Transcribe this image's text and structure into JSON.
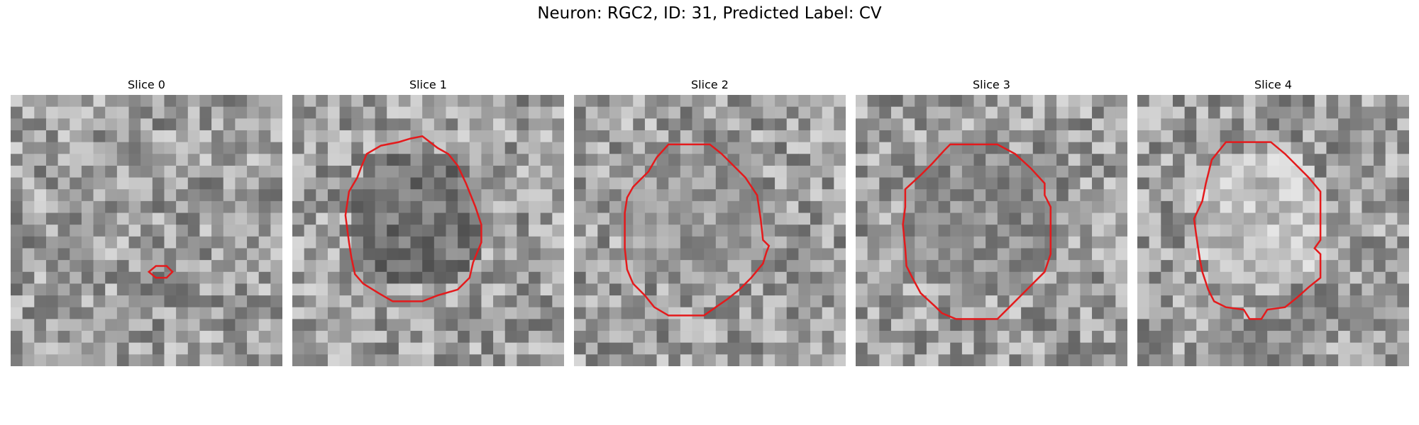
{
  "figure": {
    "title": "Neuron: RGC2, ID: 31, Predicted Label: CV",
    "contour_color": "#e41a1c"
  },
  "slices": [
    {
      "label": "Slice 0",
      "cell": [
        0.0,
        0.0,
        0.0,
        0.0
      ],
      "contour": [
        [
          11.7,
          15.0
        ],
        [
          12.3,
          14.5
        ],
        [
          13.2,
          14.5
        ],
        [
          13.7,
          15.0
        ],
        [
          13.2,
          15.5
        ],
        [
          12.3,
          15.5
        ]
      ]
    },
    {
      "label": "Slice 1",
      "cell": [
        10.5,
        10.5,
        6.0,
        0.2
      ],
      "contour": [
        [
          11.0,
          3.5
        ],
        [
          12.3,
          4.5
        ],
        [
          13.2,
          5.0
        ],
        [
          14.0,
          6.0
        ],
        [
          14.7,
          7.5
        ],
        [
          15.5,
          9.5
        ],
        [
          16.0,
          11.0
        ],
        [
          16.0,
          12.5
        ],
        [
          15.3,
          14.2
        ],
        [
          15.0,
          15.5
        ],
        [
          14.0,
          16.5
        ],
        [
          12.3,
          17.0
        ],
        [
          11.0,
          17.5
        ],
        [
          8.5,
          17.5
        ],
        [
          7.3,
          16.8
        ],
        [
          6.0,
          16.0
        ],
        [
          5.3,
          15.2
        ],
        [
          5.0,
          13.8
        ],
        [
          4.8,
          12.5
        ],
        [
          4.5,
          10.2
        ],
        [
          4.8,
          8.2
        ],
        [
          5.5,
          7.0
        ],
        [
          5.8,
          6.2
        ],
        [
          6.3,
          5.0
        ],
        [
          7.5,
          4.3
        ],
        [
          9.0,
          4.0
        ],
        [
          10.0,
          3.7
        ]
      ]
    },
    {
      "label": "Slice 2",
      "cell": [
        10.2,
        10.5,
        6.2,
        0.35
      ],
      "contour": [
        [
          8.0,
          4.2
        ],
        [
          11.5,
          4.2
        ],
        [
          12.5,
          5.0
        ],
        [
          13.5,
          6.0
        ],
        [
          14.5,
          7.0
        ],
        [
          15.5,
          8.5
        ],
        [
          15.8,
          10.5
        ],
        [
          16.0,
          12.3
        ],
        [
          16.5,
          12.8
        ],
        [
          16.3,
          13.3
        ],
        [
          16.0,
          14.3
        ],
        [
          15.0,
          15.5
        ],
        [
          14.0,
          16.5
        ],
        [
          13.0,
          17.3
        ],
        [
          12.0,
          18.0
        ],
        [
          11.0,
          18.7
        ],
        [
          8.0,
          18.7
        ],
        [
          6.8,
          18.0
        ],
        [
          6.0,
          17.0
        ],
        [
          5.0,
          16.0
        ],
        [
          4.5,
          14.8
        ],
        [
          4.3,
          13.0
        ],
        [
          4.3,
          10.0
        ],
        [
          4.5,
          8.7
        ],
        [
          5.0,
          7.8
        ],
        [
          6.3,
          6.5
        ],
        [
          7.0,
          5.3
        ]
      ]
    },
    {
      "label": "Slice 3",
      "cell": [
        10.5,
        10.5,
        6.5,
        0.3
      ],
      "contour": [
        [
          8.0,
          4.2
        ],
        [
          12.0,
          4.2
        ],
        [
          13.5,
          5.0
        ],
        [
          14.8,
          6.2
        ],
        [
          16.0,
          7.5
        ],
        [
          16.0,
          8.5
        ],
        [
          16.5,
          9.5
        ],
        [
          16.5,
          13.5
        ],
        [
          16.0,
          15.0
        ],
        [
          15.0,
          16.0
        ],
        [
          14.0,
          17.0
        ],
        [
          13.0,
          18.0
        ],
        [
          12.0,
          19.0
        ],
        [
          8.5,
          19.0
        ],
        [
          7.3,
          18.5
        ],
        [
          6.8,
          18.0
        ],
        [
          5.5,
          16.8
        ],
        [
          4.8,
          15.5
        ],
        [
          4.3,
          14.5
        ],
        [
          4.2,
          13.0
        ],
        [
          4.0,
          11.0
        ],
        [
          4.2,
          9.5
        ],
        [
          4.2,
          8.0
        ],
        [
          5.5,
          6.8
        ],
        [
          6.5,
          5.8
        ],
        [
          7.5,
          4.7
        ]
      ]
    },
    {
      "label": "Slice 4",
      "cell": [
        10.5,
        10.5,
        6.0,
        0.5
      ],
      "contour": [
        [
          7.5,
          4.0
        ],
        [
          11.3,
          4.0
        ],
        [
          12.5,
          5.0
        ],
        [
          13.5,
          6.0
        ],
        [
          14.5,
          7.0
        ],
        [
          15.5,
          8.2
        ],
        [
          15.5,
          12.3
        ],
        [
          15.0,
          13.0
        ],
        [
          15.5,
          13.5
        ],
        [
          15.5,
          15.5
        ],
        [
          14.5,
          16.3
        ],
        [
          13.5,
          17.2
        ],
        [
          12.5,
          18.0
        ],
        [
          11.0,
          18.2
        ],
        [
          10.5,
          19.0
        ],
        [
          9.5,
          19.0
        ],
        [
          9.0,
          18.2
        ],
        [
          7.5,
          18.0
        ],
        [
          6.5,
          17.5
        ],
        [
          6.0,
          16.5
        ],
        [
          5.5,
          15.0
        ],
        [
          5.3,
          14.0
        ],
        [
          5.0,
          12.0
        ],
        [
          4.8,
          10.5
        ],
        [
          5.5,
          9.0
        ],
        [
          5.8,
          7.5
        ],
        [
          6.3,
          5.5
        ]
      ]
    }
  ]
}
